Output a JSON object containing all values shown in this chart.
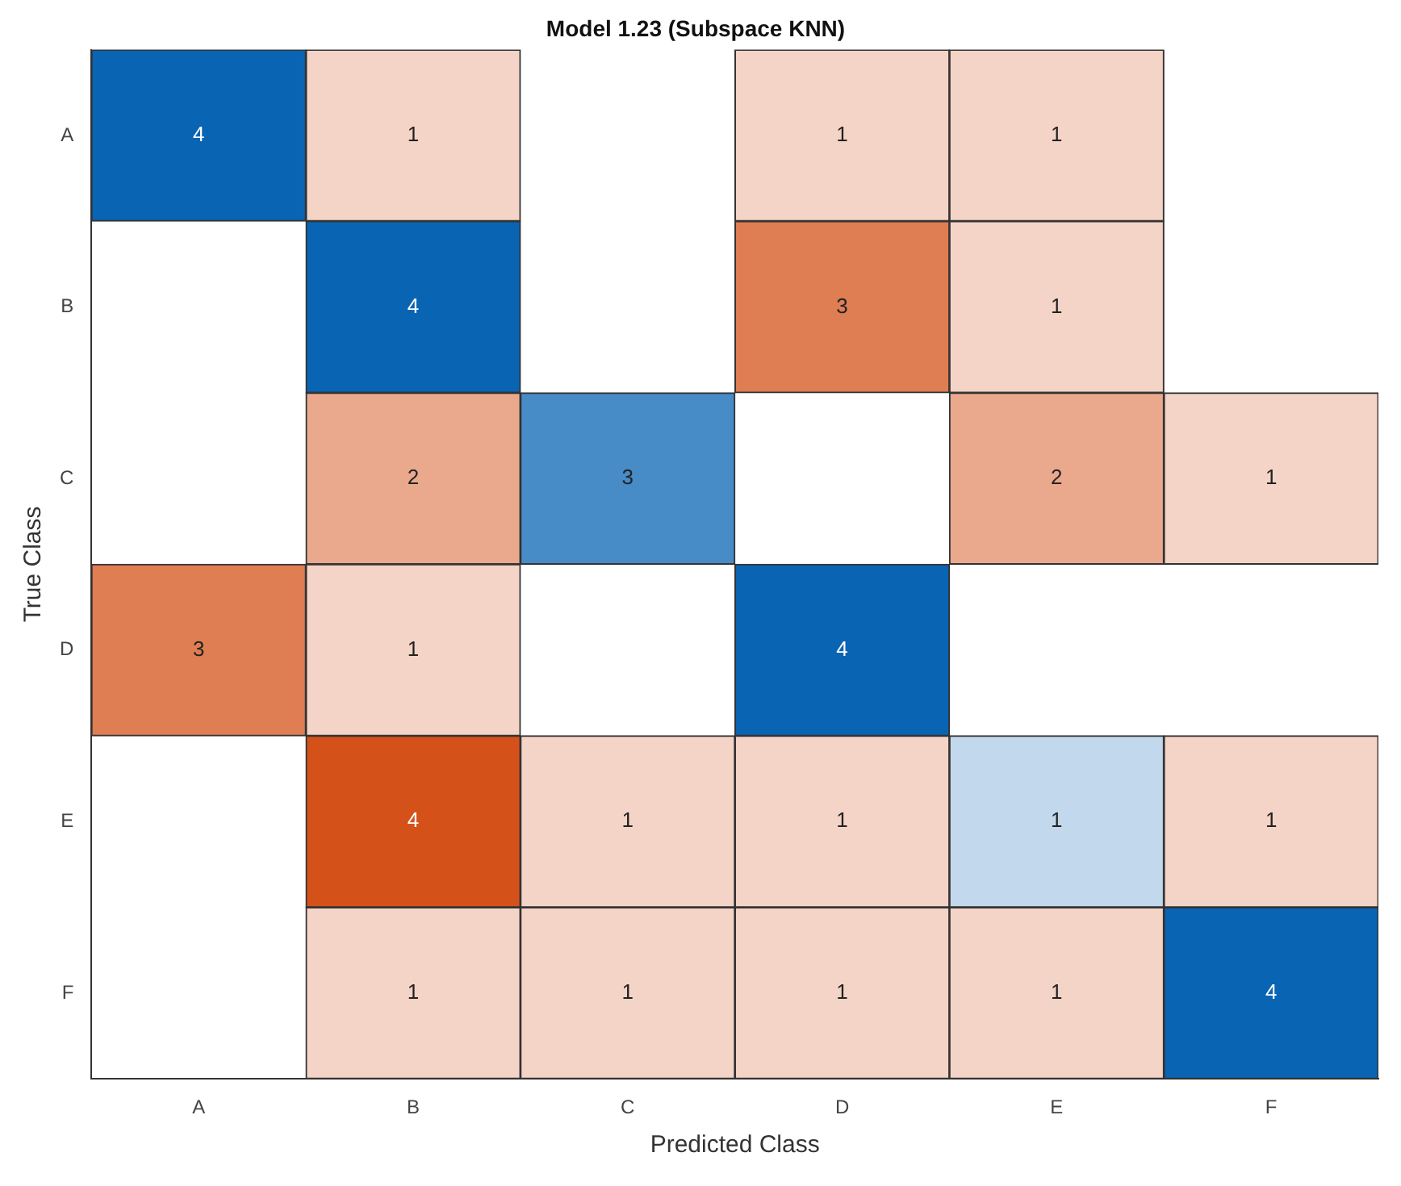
{
  "chart_data": {
    "type": "heatmap",
    "title": "Model 1.23 (Subspace KNN)",
    "xlabel": "Predicted Class",
    "ylabel": "True Class",
    "categories": [
      "A",
      "B",
      "C",
      "D",
      "E",
      "F"
    ],
    "y_categories": [
      "A",
      "B",
      "C",
      "D",
      "E",
      "F"
    ],
    "colors": [
      "#0a64b4",
      "#d4521a"
    ],
    "cells": [
      [
        4,
        1,
        null,
        1,
        1,
        null
      ],
      [
        null,
        4,
        null,
        3,
        1,
        null
      ],
      [
        null,
        2,
        3,
        null,
        2,
        1
      ],
      [
        3,
        1,
        null,
        4,
        null,
        null
      ],
      [
        null,
        4,
        1,
        1,
        1,
        1
      ],
      [
        null,
        1,
        1,
        1,
        1,
        4
      ]
    ],
    "data_labels": true,
    "legend": false,
    "grid": false
  }
}
